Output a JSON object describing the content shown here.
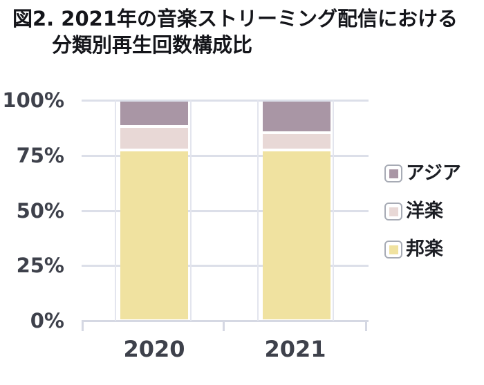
{
  "title": {
    "line1": "図2. 2021年の音楽ストリーミング配信における",
    "line2": "分類別再生回数構成比"
  },
  "chart_data": {
    "type": "bar",
    "stacked": true,
    "unit": "percent",
    "title": "図2. 2021年の音楽ストリーミング配信における分類別再生回数構成比",
    "categories": [
      "2020",
      "2021"
    ],
    "series": [
      {
        "name": "アジア",
        "color": "#a996a5",
        "values": [
          11,
          14
        ]
      },
      {
        "name": "洋楽",
        "color": "#e8d8d6",
        "values": [
          10,
          7
        ]
      },
      {
        "name": "邦楽",
        "color": "#f0e2a0",
        "values": [
          79,
          79
        ]
      }
    ],
    "y_axis": {
      "range": [
        0,
        100
      ],
      "ticks": [
        100,
        75,
        50,
        25,
        0
      ],
      "tick_labels": [
        "100%",
        "75%",
        "50%",
        "25%",
        "0%"
      ]
    },
    "legend": {
      "position": "right",
      "items": [
        "アジア",
        "洋楽",
        "邦楽"
      ]
    },
    "grid": true,
    "background_color": "#ffffff",
    "gridline_color": "#dcdfe9",
    "text_color": "#3e414b"
  }
}
